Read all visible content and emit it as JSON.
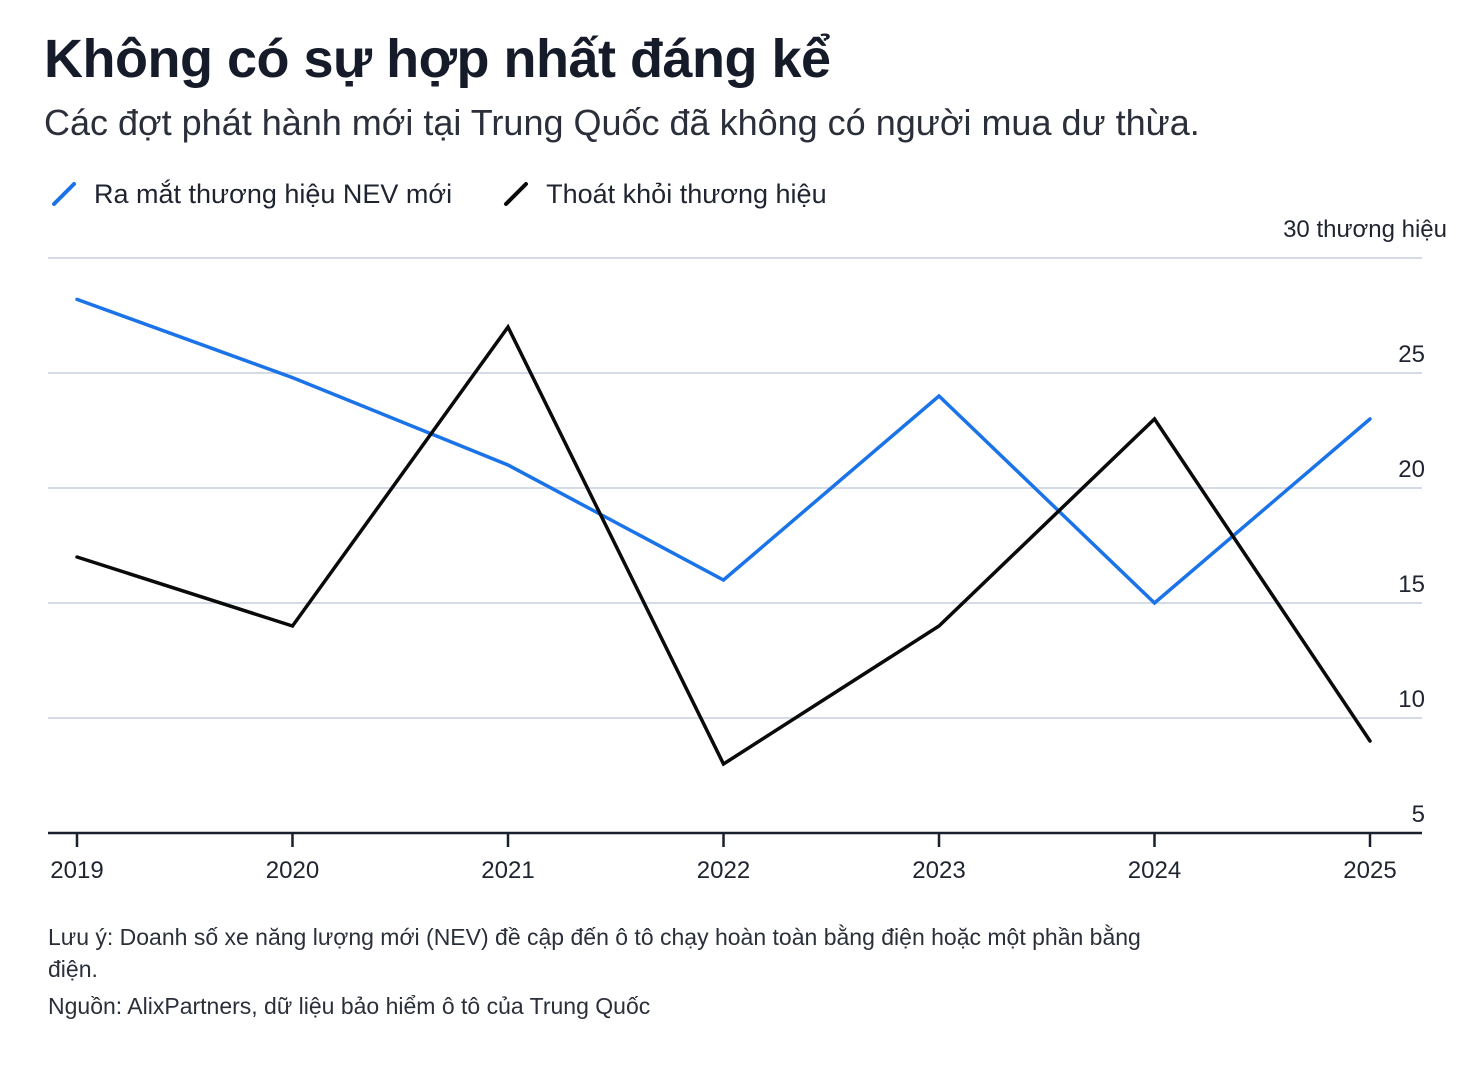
{
  "title": "Không có sự hợp nhất đáng kể",
  "subtitle": "Các đợt phát hành mới tại Trung Quốc đã không có người mua dư thừa.",
  "legend": {
    "series1_label": "Ra mắt thương hiệu NEV mới",
    "series2_label": "Thoát khỏi thương hiệu"
  },
  "colors": {
    "series1": "#1a73e8",
    "series2": "#0a0a0a",
    "grid": "#d4dae6",
    "axis": "#1a1f2e"
  },
  "chart_data": {
    "type": "line",
    "x": [
      "2019",
      "2020",
      "2021",
      "2022",
      "2023",
      "2024",
      "2025"
    ],
    "series": [
      {
        "name": "Ra mắt thương hiệu NEV mới",
        "values": [
          28.2,
          24.8,
          21.0,
          16.0,
          24.0,
          15.0,
          23.0
        ]
      },
      {
        "name": "Thoát khỏi thương hiệu",
        "values": [
          17.0,
          14.0,
          27.0,
          8.0,
          14.0,
          23.0,
          9.0
        ]
      }
    ],
    "ylim": [
      5,
      30
    ],
    "yticks": [
      {
        "value": 30,
        "label": "30 thương hiệu"
      },
      {
        "value": 25,
        "label": "25"
      },
      {
        "value": 20,
        "label": "20"
      },
      {
        "value": 15,
        "label": "15"
      },
      {
        "value": 10,
        "label": "10"
      },
      {
        "value": 5,
        "label": "5"
      }
    ],
    "grid": true,
    "legend_position": "top-left"
  },
  "footer": {
    "note": "Lưu ý: Doanh số xe năng lượng mới (NEV) đề cập đến ô tô chạy hoàn toàn bằng điện hoặc một phần bằng điện.",
    "source": "Nguồn: AlixPartners, dữ liệu bảo hiểm ô tô của Trung Quốc"
  }
}
